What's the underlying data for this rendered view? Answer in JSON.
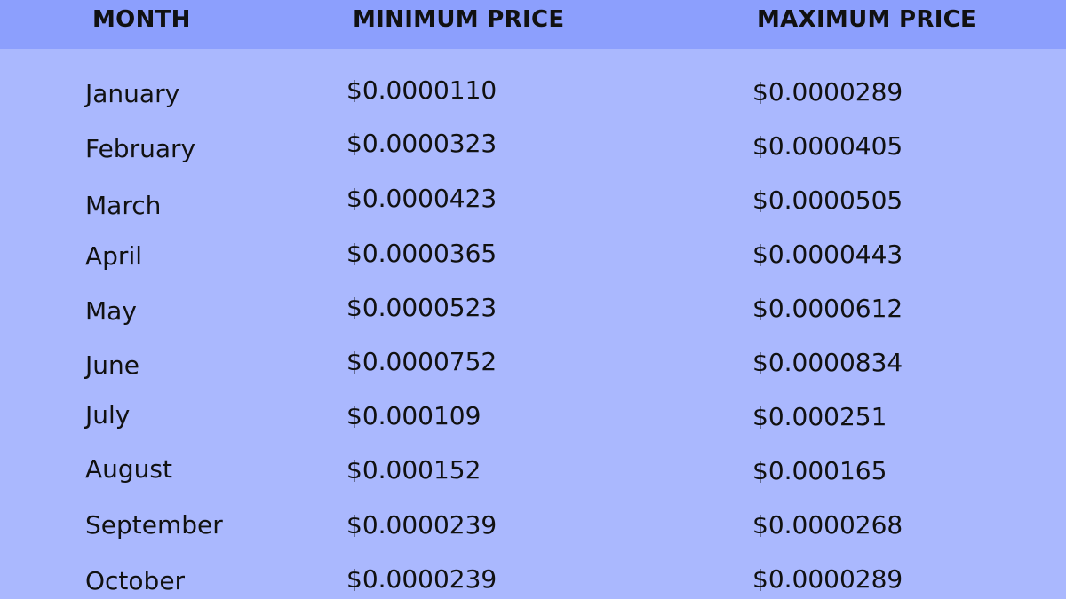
{
  "table": {
    "headers": {
      "month": "MONTH",
      "min": "MINIMUM PRICE",
      "max": "MAXIMUM PRICE"
    },
    "rows": [
      {
        "month": "January",
        "min": "$0.0000110",
        "max": "$0.0000289"
      },
      {
        "month": "February",
        "min": "$0.0000323",
        "max": "$0.0000405"
      },
      {
        "month": "March",
        "min": "$0.0000423",
        "max": "$0.0000505"
      },
      {
        "month": "April",
        "min": "$0.0000365",
        "max": "$0.0000443"
      },
      {
        "month": "May",
        "min": "$0.0000523",
        "max": "$0.0000612"
      },
      {
        "month": "June",
        "min": "$0.0000752",
        "max": "$0.0000834"
      },
      {
        "month": "July",
        "min": "$0.000109",
        "max": "$0.000251"
      },
      {
        "month": "August",
        "min": "$0.000152",
        "max": "$0.000165"
      },
      {
        "month": "September",
        "min": "$0.0000239",
        "max": "$0.0000268"
      },
      {
        "month": "October",
        "min": "$0.0000239",
        "max": "$0.0000289"
      }
    ]
  },
  "colors": {
    "header_background": "#8c9ffd",
    "body_background": "#aab8fe",
    "text": "#111111"
  }
}
